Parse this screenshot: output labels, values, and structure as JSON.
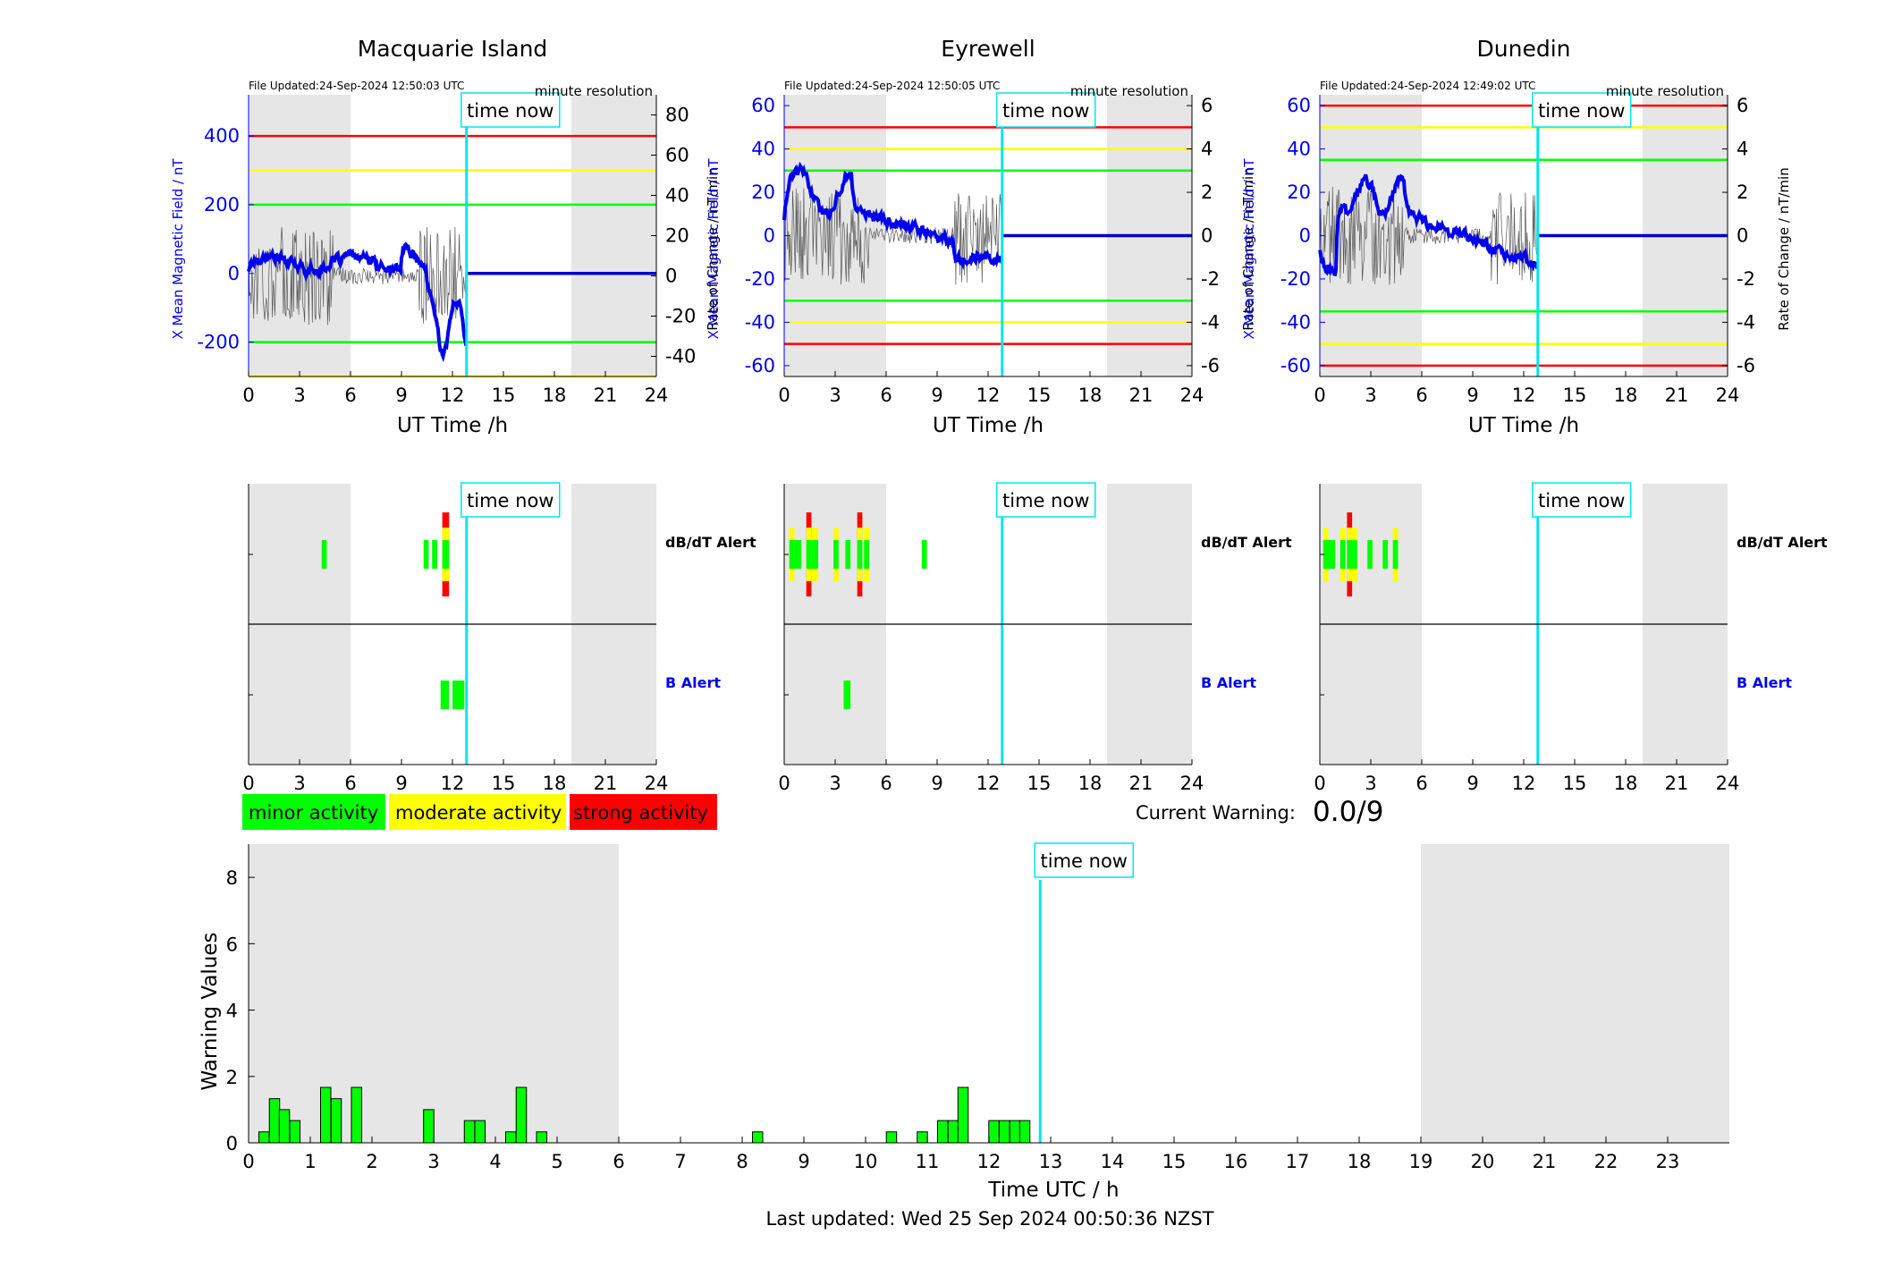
{
  "magnetometer_panels": [
    {
      "station": "Macquarie Island",
      "file_updated": "File Updated:24-Sep-2024 12:50:03 UTC",
      "resolution": "minute resolution",
      "ylabel_left": "X Mean Magnetic Field / nT",
      "ylabel_right": "Rate of Change / nT/min",
      "xlabel": "UT Time /h",
      "ylim_left": [
        -300,
        520
      ],
      "yticks_left": [
        -200,
        0,
        200,
        400
      ],
      "ylim_right": [
        -50,
        90
      ],
      "yticks_right": [
        -40,
        -20,
        0,
        20,
        40,
        60,
        80
      ],
      "thresholds_left": [
        {
          "level": "strong",
          "value": 400
        },
        {
          "level": "moderate",
          "value": 300
        },
        {
          "level": "minor",
          "value": 200
        },
        {
          "level": "minor",
          "value": -200
        },
        {
          "level": "moderate",
          "value": -300
        }
      ]
    },
    {
      "station": "Eyrewell",
      "file_updated": "File Updated:24-Sep-2024 12:50:05 UTC",
      "resolution": "minute resolution",
      "ylabel_left": "X Mean Magnetic Field / nT",
      "ylabel_right": "Rate of Change / nT/min",
      "xlabel": "UT Time /h",
      "ylim_left": [
        -65,
        65
      ],
      "yticks_left": [
        -60,
        -40,
        -20,
        0,
        20,
        40,
        60
      ],
      "ylim_right": [
        -6.5,
        6.5
      ],
      "yticks_right": [
        -6,
        -4,
        -2,
        0,
        2,
        4,
        6
      ],
      "thresholds_left": [
        {
          "level": "strong",
          "value": 50
        },
        {
          "level": "moderate",
          "value": 40
        },
        {
          "level": "minor",
          "value": 30
        },
        {
          "level": "minor",
          "value": -30
        },
        {
          "level": "moderate",
          "value": -40
        },
        {
          "level": "strong",
          "value": -50
        }
      ]
    },
    {
      "station": "Dunedin",
      "file_updated": "File Updated:24-Sep-2024 12:49:02 UTC",
      "resolution": "minute resolution",
      "ylabel_left": "X Mean Magnetic Field / nT",
      "ylabel_right": "Rate of Change / nT/min",
      "xlabel": "UT Time /h",
      "ylim_left": [
        -65,
        65
      ],
      "yticks_left": [
        -60,
        -40,
        -20,
        0,
        20,
        40,
        60
      ],
      "ylim_right": [
        -6.5,
        6.5
      ],
      "yticks_right": [
        -6,
        -4,
        -2,
        0,
        2,
        4,
        6
      ],
      "thresholds_left": [
        {
          "level": "strong",
          "value": 60
        },
        {
          "level": "moderate",
          "value": 50
        },
        {
          "level": "minor",
          "value": 35
        },
        {
          "level": "minor",
          "value": -35
        },
        {
          "level": "moderate",
          "value": -50
        },
        {
          "level": "strong",
          "value": -60
        }
      ]
    }
  ],
  "alert_panels": [
    {
      "station": "Macquarie Island",
      "dbdt_label": "dB/dT Alert",
      "b_label": "B Alert",
      "dbdt_alerts": [
        [
          4.3,
          4.6,
          "minor"
        ],
        [
          10.3,
          10.6,
          "minor"
        ],
        [
          10.8,
          11.1,
          "minor"
        ],
        [
          11.4,
          11.8,
          "strong"
        ]
      ],
      "b_alerts": [
        [
          11.3,
          11.8,
          "minor"
        ],
        [
          12.0,
          12.7,
          "minor"
        ]
      ]
    },
    {
      "station": "Eyrewell",
      "dbdt_label": "dB/dT Alert",
      "b_label": "B Alert",
      "dbdt_alerts": [
        [
          0.3,
          0.6,
          "moderate"
        ],
        [
          0.6,
          1.0,
          "minor"
        ],
        [
          1.3,
          1.6,
          "strong"
        ],
        [
          1.6,
          2.0,
          "moderate"
        ],
        [
          2.9,
          3.2,
          "moderate"
        ],
        [
          3.6,
          3.9,
          "minor"
        ],
        [
          4.3,
          4.6,
          "strong"
        ],
        [
          4.7,
          5.0,
          "moderate"
        ],
        [
          8.1,
          8.4,
          "minor"
        ]
      ],
      "b_alerts": [
        [
          3.5,
          3.9,
          "minor"
        ]
      ]
    },
    {
      "station": "Dunedin",
      "dbdt_label": "dB/dT Alert",
      "b_label": "B Alert",
      "dbdt_alerts": [
        [
          0.2,
          0.5,
          "moderate"
        ],
        [
          0.5,
          0.9,
          "minor"
        ],
        [
          1.2,
          1.5,
          "moderate"
        ],
        [
          1.6,
          1.9,
          "strong"
        ],
        [
          1.9,
          2.2,
          "moderate"
        ],
        [
          2.8,
          3.1,
          "minor"
        ],
        [
          3.7,
          4.0,
          "minor"
        ],
        [
          4.3,
          4.6,
          "moderate"
        ]
      ],
      "b_alerts": []
    }
  ],
  "time_now": {
    "label": "time now",
    "hour": 12.83
  },
  "night_shading_hours": [
    [
      0,
      6
    ],
    [
      19,
      24
    ]
  ],
  "hour_ticks_small": [
    0,
    3,
    6,
    9,
    12,
    15,
    18,
    21,
    24
  ],
  "legend": [
    {
      "label": "minor activity",
      "color": "#00ff00"
    },
    {
      "label": "moderate activity",
      "color": "#ffff00"
    },
    {
      "label": "strong activity",
      "color": "#ff0000"
    }
  ],
  "current_warning": {
    "label": "Current Warning:",
    "value": "0.0/9"
  },
  "chart_data": {
    "type": "bar",
    "ylabel": "Warning Values",
    "xlabel": "Time UTC / h",
    "xlim": [
      0,
      24
    ],
    "ylim": [
      0,
      9
    ],
    "yticks": [
      0,
      2,
      4,
      6,
      8
    ],
    "xticks": [
      0,
      1,
      2,
      3,
      4,
      5,
      6,
      7,
      8,
      9,
      10,
      11,
      12,
      13,
      14,
      15,
      16,
      17,
      18,
      19,
      20,
      21,
      22,
      23
    ],
    "bar_width_h": 0.1667,
    "bars": [
      {
        "t": 0.25,
        "v": 0.33
      },
      {
        "t": 0.42,
        "v": 1.33
      },
      {
        "t": 0.58,
        "v": 1.0
      },
      {
        "t": 0.75,
        "v": 0.67
      },
      {
        "t": 1.25,
        "v": 1.67
      },
      {
        "t": 1.42,
        "v": 1.33
      },
      {
        "t": 1.75,
        "v": 1.67
      },
      {
        "t": 2.92,
        "v": 1.0
      },
      {
        "t": 3.58,
        "v": 0.67
      },
      {
        "t": 3.75,
        "v": 0.67
      },
      {
        "t": 4.25,
        "v": 0.33
      },
      {
        "t": 4.42,
        "v": 1.67
      },
      {
        "t": 4.75,
        "v": 0.33
      },
      {
        "t": 8.25,
        "v": 0.33
      },
      {
        "t": 10.42,
        "v": 0.33
      },
      {
        "t": 10.92,
        "v": 0.33
      },
      {
        "t": 11.25,
        "v": 0.67
      },
      {
        "t": 11.42,
        "v": 0.67
      },
      {
        "t": 11.58,
        "v": 1.67
      },
      {
        "t": 12.08,
        "v": 0.67
      },
      {
        "t": 12.25,
        "v": 0.67
      },
      {
        "t": 12.42,
        "v": 0.67
      },
      {
        "t": 12.58,
        "v": 0.67
      }
    ],
    "bar_color": "#00ff00"
  },
  "last_updated": "Last updated: Wed 25 Sep 2024 00:50:36 NZST"
}
